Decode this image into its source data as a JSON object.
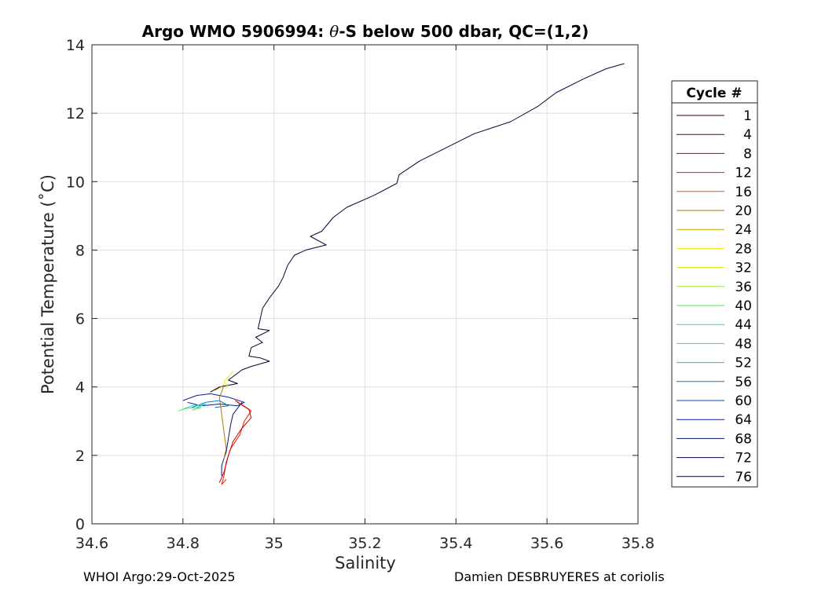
{
  "chart_data": {
    "type": "line",
    "title_prefix": "Argo WMO 5906994: ",
    "title_symbol": "θ",
    "title_suffix": "-S below 500 dbar,  QC=(1,2)",
    "xlabel": "Salinity",
    "ylabel": "Potential Temperature (˚C)",
    "xlim": [
      34.6,
      35.8
    ],
    "ylim": [
      0,
      14
    ],
    "xticks": [
      34.6,
      34.8,
      35.0,
      35.2,
      35.4,
      35.6,
      35.8
    ],
    "xtick_labels": [
      "34.6",
      "34.8",
      "35",
      "35.2",
      "35.4",
      "35.6",
      "35.8"
    ],
    "yticks": [
      0,
      2,
      4,
      6,
      8,
      10,
      12,
      14
    ],
    "ytick_labels": [
      "0",
      "2",
      "4",
      "6",
      "8",
      "10",
      "12",
      "14"
    ],
    "grid": true,
    "legend": {
      "title": "Cycle #",
      "placement": "outside-right",
      "entries": [
        {
          "label": "1",
          "color": "#3a0000"
        },
        {
          "label": "4",
          "color": "#7a0000"
        },
        {
          "label": "8",
          "color": "#c40000"
        },
        {
          "label": "12",
          "color": "#ef1a00"
        },
        {
          "label": "16",
          "color": "#e8501a"
        },
        {
          "label": "20",
          "color": "#b07a00"
        },
        {
          "label": "24",
          "color": "#c8b000"
        },
        {
          "label": "28",
          "color": "#f2ee00"
        },
        {
          "label": "32",
          "color": "#d6f000"
        },
        {
          "label": "36",
          "color": "#98ee30"
        },
        {
          "label": "40",
          "color": "#4be84b"
        },
        {
          "label": "44",
          "color": "#1ee896"
        },
        {
          "label": "48",
          "color": "#1ed8c8"
        },
        {
          "label": "52",
          "color": "#14bcd8"
        },
        {
          "label": "56",
          "color": "#0a7ab8"
        },
        {
          "label": "60",
          "color": "#0a4ab8"
        },
        {
          "label": "64",
          "color": "#0a1ea0"
        },
        {
          "label": "68",
          "color": "#06107a"
        },
        {
          "label": "72",
          "color": "#040a50"
        },
        {
          "label": "76",
          "color": "#020632"
        }
      ]
    },
    "series": [
      {
        "name": "76",
        "color": "#020632",
        "points": [
          [
            35.77,
            13.45
          ],
          [
            35.73,
            13.3
          ],
          [
            35.68,
            13.0
          ],
          [
            35.62,
            12.6
          ],
          [
            35.58,
            12.2
          ],
          [
            35.52,
            11.75
          ],
          [
            35.44,
            11.4
          ],
          [
            35.38,
            11.0
          ],
          [
            35.32,
            10.6
          ],
          [
            35.275,
            10.2
          ],
          [
            35.27,
            9.95
          ],
          [
            35.22,
            9.6
          ],
          [
            35.16,
            9.25
          ],
          [
            35.13,
            8.95
          ],
          [
            35.105,
            8.55
          ],
          [
            35.08,
            8.4
          ],
          [
            35.115,
            8.15
          ],
          [
            35.07,
            8.0
          ],
          [
            35.045,
            7.85
          ],
          [
            35.03,
            7.55
          ],
          [
            35.02,
            7.2
          ],
          [
            35.01,
            6.95
          ],
          [
            34.99,
            6.6
          ],
          [
            34.975,
            6.3
          ],
          [
            34.97,
            6.0
          ],
          [
            34.965,
            5.7
          ],
          [
            34.99,
            5.65
          ],
          [
            34.96,
            5.45
          ],
          [
            34.975,
            5.3
          ],
          [
            34.95,
            5.15
          ],
          [
            34.945,
            4.9
          ],
          [
            34.97,
            4.85
          ],
          [
            34.99,
            4.75
          ],
          [
            34.95,
            4.6
          ],
          [
            34.93,
            4.5
          ],
          [
            34.9,
            4.2
          ],
          [
            34.92,
            4.1
          ],
          [
            34.88,
            4.0
          ],
          [
            34.86,
            3.85
          ]
        ]
      },
      {
        "name": "68",
        "color": "#06107a",
        "points": [
          [
            34.93,
            3.55
          ],
          [
            34.91,
            3.2
          ],
          [
            34.905,
            2.9
          ],
          [
            34.9,
            2.5
          ],
          [
            34.895,
            2.1
          ],
          [
            34.885,
            1.7
          ],
          [
            34.885,
            1.4
          ]
        ]
      },
      {
        "name": "64",
        "color": "#0a1ea0",
        "points": [
          [
            34.8,
            3.6
          ],
          [
            34.83,
            3.75
          ],
          [
            34.86,
            3.8
          ],
          [
            34.9,
            3.7
          ],
          [
            34.935,
            3.55
          ],
          [
            34.92,
            3.45
          ],
          [
            34.88,
            3.5
          ],
          [
            34.84,
            3.45
          ],
          [
            34.81,
            3.55
          ]
        ]
      },
      {
        "name": "56",
        "color": "#0a7ab8",
        "points": [
          [
            34.82,
            3.4
          ],
          [
            34.85,
            3.55
          ],
          [
            34.88,
            3.6
          ],
          [
            34.9,
            3.45
          ],
          [
            34.87,
            3.4
          ]
        ]
      },
      {
        "name": "48",
        "color": "#1ed8c8",
        "points": [
          [
            34.8,
            3.35
          ],
          [
            34.82,
            3.45
          ],
          [
            34.85,
            3.5
          ],
          [
            34.83,
            3.4
          ]
        ]
      },
      {
        "name": "40",
        "color": "#4be84b",
        "points": [
          [
            34.79,
            3.3
          ],
          [
            34.81,
            3.38
          ],
          [
            34.84,
            3.4
          ],
          [
            34.82,
            3.32
          ]
        ]
      },
      {
        "name": "28",
        "color": "#f2ee00",
        "points": [
          [
            34.9,
            4.3
          ],
          [
            34.91,
            4.45
          ],
          [
            34.89,
            4.15
          ],
          [
            34.9,
            4.0
          ]
        ]
      },
      {
        "name": "20",
        "color": "#b07a00",
        "points": [
          [
            34.87,
            3.9
          ],
          [
            34.89,
            4.05
          ],
          [
            34.885,
            3.85
          ],
          [
            34.88,
            3.7
          ],
          [
            34.895,
            2.2
          ],
          [
            34.89,
            1.9
          ]
        ]
      },
      {
        "name": "12",
        "color": "#ef1a00",
        "points": [
          [
            34.92,
            3.55
          ],
          [
            34.95,
            3.3
          ],
          [
            34.935,
            3.0
          ],
          [
            34.925,
            2.6
          ],
          [
            34.905,
            2.2
          ],
          [
            34.895,
            1.8
          ],
          [
            34.89,
            1.4
          ],
          [
            34.885,
            1.15
          ],
          [
            34.895,
            1.3
          ]
        ]
      },
      {
        "name": "8",
        "color": "#c40000",
        "points": [
          [
            34.915,
            3.6
          ],
          [
            34.945,
            3.35
          ],
          [
            34.95,
            3.1
          ],
          [
            34.93,
            2.8
          ],
          [
            34.91,
            2.4
          ],
          [
            34.9,
            2.0
          ],
          [
            34.89,
            1.5
          ],
          [
            34.88,
            1.2
          ]
        ]
      }
    ]
  },
  "footer": {
    "left": "WHOI Argo:29-Oct-2025",
    "right": "Damien DESBRUYERES at coriolis"
  }
}
